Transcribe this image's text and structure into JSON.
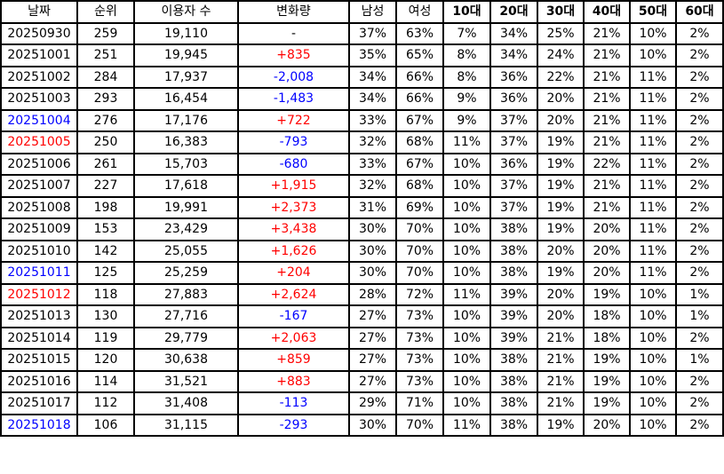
{
  "headers": [
    "날짜",
    "순위",
    "이용자 수",
    "변화량",
    "남성",
    "여성",
    "10대",
    "20대",
    "30대",
    "40대",
    "50대",
    "60대"
  ],
  "colors": {
    "positive": "#ff0000",
    "negative": "#0000ff",
    "saturday": "#0000ff",
    "sunday": "#ff0000"
  },
  "rows": [
    {
      "date": "20250930",
      "day": "",
      "rank": "259",
      "users": "19,110",
      "change": "-",
      "male": "37%",
      "female": "63%",
      "age10": "7%",
      "age20": "34%",
      "age30": "25%",
      "age40": "21%",
      "age50": "10%",
      "age60": "2%"
    },
    {
      "date": "20251001",
      "day": "",
      "rank": "251",
      "users": "19,945",
      "change": "+835",
      "male": "35%",
      "female": "65%",
      "age10": "8%",
      "age20": "34%",
      "age30": "24%",
      "age40": "21%",
      "age50": "10%",
      "age60": "2%"
    },
    {
      "date": "20251002",
      "day": "",
      "rank": "284",
      "users": "17,937",
      "change": "-2,008",
      "male": "34%",
      "female": "66%",
      "age10": "8%",
      "age20": "36%",
      "age30": "22%",
      "age40": "21%",
      "age50": "11%",
      "age60": "2%"
    },
    {
      "date": "20251003",
      "day": "",
      "rank": "293",
      "users": "16,454",
      "change": "-1,483",
      "male": "34%",
      "female": "66%",
      "age10": "9%",
      "age20": "36%",
      "age30": "20%",
      "age40": "21%",
      "age50": "11%",
      "age60": "2%"
    },
    {
      "date": "20251004",
      "day": "sat",
      "rank": "276",
      "users": "17,176",
      "change": "+722",
      "male": "33%",
      "female": "67%",
      "age10": "9%",
      "age20": "37%",
      "age30": "20%",
      "age40": "21%",
      "age50": "11%",
      "age60": "2%"
    },
    {
      "date": "20251005",
      "day": "sun",
      "rank": "250",
      "users": "16,383",
      "change": "-793",
      "male": "32%",
      "female": "68%",
      "age10": "11%",
      "age20": "37%",
      "age30": "19%",
      "age40": "21%",
      "age50": "11%",
      "age60": "2%"
    },
    {
      "date": "20251006",
      "day": "",
      "rank": "261",
      "users": "15,703",
      "change": "-680",
      "male": "33%",
      "female": "67%",
      "age10": "10%",
      "age20": "36%",
      "age30": "19%",
      "age40": "22%",
      "age50": "11%",
      "age60": "2%"
    },
    {
      "date": "20251007",
      "day": "",
      "rank": "227",
      "users": "17,618",
      "change": "+1,915",
      "male": "32%",
      "female": "68%",
      "age10": "10%",
      "age20": "37%",
      "age30": "19%",
      "age40": "21%",
      "age50": "11%",
      "age60": "2%"
    },
    {
      "date": "20251008",
      "day": "",
      "rank": "198",
      "users": "19,991",
      "change": "+2,373",
      "male": "31%",
      "female": "69%",
      "age10": "10%",
      "age20": "37%",
      "age30": "19%",
      "age40": "21%",
      "age50": "11%",
      "age60": "2%"
    },
    {
      "date": "20251009",
      "day": "",
      "rank": "153",
      "users": "23,429",
      "change": "+3,438",
      "male": "30%",
      "female": "70%",
      "age10": "10%",
      "age20": "38%",
      "age30": "19%",
      "age40": "20%",
      "age50": "11%",
      "age60": "2%"
    },
    {
      "date": "20251010",
      "day": "",
      "rank": "142",
      "users": "25,055",
      "change": "+1,626",
      "male": "30%",
      "female": "70%",
      "age10": "10%",
      "age20": "38%",
      "age30": "20%",
      "age40": "20%",
      "age50": "11%",
      "age60": "2%"
    },
    {
      "date": "20251011",
      "day": "sat",
      "rank": "125",
      "users": "25,259",
      "change": "+204",
      "male": "30%",
      "female": "70%",
      "age10": "10%",
      "age20": "38%",
      "age30": "19%",
      "age40": "20%",
      "age50": "11%",
      "age60": "2%"
    },
    {
      "date": "20251012",
      "day": "sun",
      "rank": "118",
      "users": "27,883",
      "change": "+2,624",
      "male": "28%",
      "female": "72%",
      "age10": "11%",
      "age20": "39%",
      "age30": "20%",
      "age40": "19%",
      "age50": "10%",
      "age60": "1%"
    },
    {
      "date": "20251013",
      "day": "",
      "rank": "130",
      "users": "27,716",
      "change": "-167",
      "male": "27%",
      "female": "73%",
      "age10": "10%",
      "age20": "39%",
      "age30": "20%",
      "age40": "18%",
      "age50": "10%",
      "age60": "1%"
    },
    {
      "date": "20251014",
      "day": "",
      "rank": "119",
      "users": "29,779",
      "change": "+2,063",
      "male": "27%",
      "female": "73%",
      "age10": "10%",
      "age20": "39%",
      "age30": "21%",
      "age40": "18%",
      "age50": "10%",
      "age60": "2%"
    },
    {
      "date": "20251015",
      "day": "",
      "rank": "120",
      "users": "30,638",
      "change": "+859",
      "male": "27%",
      "female": "73%",
      "age10": "10%",
      "age20": "38%",
      "age30": "21%",
      "age40": "19%",
      "age50": "10%",
      "age60": "1%"
    },
    {
      "date": "20251016",
      "day": "",
      "rank": "114",
      "users": "31,521",
      "change": "+883",
      "male": "27%",
      "female": "73%",
      "age10": "10%",
      "age20": "38%",
      "age30": "21%",
      "age40": "19%",
      "age50": "10%",
      "age60": "2%"
    },
    {
      "date": "20251017",
      "day": "",
      "rank": "112",
      "users": "31,408",
      "change": "-113",
      "male": "29%",
      "female": "71%",
      "age10": "10%",
      "age20": "38%",
      "age30": "21%",
      "age40": "19%",
      "age50": "10%",
      "age60": "2%"
    },
    {
      "date": "20251018",
      "day": "sat",
      "rank": "106",
      "users": "31,115",
      "change": "-293",
      "male": "30%",
      "female": "70%",
      "age10": "11%",
      "age20": "38%",
      "age30": "19%",
      "age40": "20%",
      "age50": "10%",
      "age60": "2%"
    }
  ]
}
